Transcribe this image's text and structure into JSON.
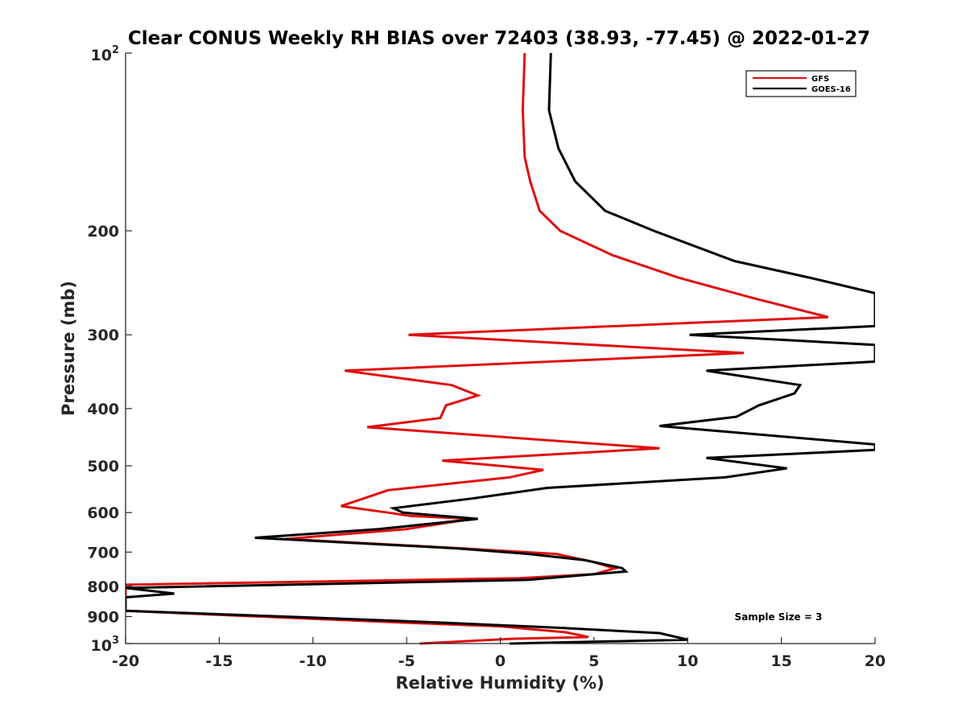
{
  "chart_data": {
    "type": "line",
    "title": "Clear CONUS Weekly RH BIAS over 72403 (38.93, -77.45) @ 2022-01-27",
    "xlabel": "Relative Humidity (%)",
    "ylabel": "Pressure (mb)",
    "xlim": [
      -20,
      20
    ],
    "ylim": [
      100,
      1000
    ],
    "y_scale": "log",
    "y_reversed": true,
    "x_ticks": [
      "-20",
      "-15",
      "-10",
      "-5",
      "0",
      "5",
      "10",
      "15",
      "20"
    ],
    "x_tick_values": [
      -20,
      -15,
      -10,
      -5,
      0,
      5,
      10,
      15,
      20
    ],
    "y_ticks": [
      {
        "value": 100,
        "base": "10",
        "exp": "2"
      },
      {
        "value": 200,
        "label": "200"
      },
      {
        "value": 300,
        "label": "300"
      },
      {
        "value": 400,
        "label": "400"
      },
      {
        "value": 500,
        "label": "500"
      },
      {
        "value": 600,
        "label": "600"
      },
      {
        "value": 700,
        "label": "700"
      },
      {
        "value": 800,
        "label": "800"
      },
      {
        "value": 900,
        "label": "900"
      },
      {
        "value": 1000,
        "base": "10",
        "exp": "3"
      }
    ],
    "grid": false,
    "legend_position": "top-right",
    "series": [
      {
        "name": "GFS",
        "color": "#e01010",
        "points": [
          [
            1.3,
            100
          ],
          [
            1.2,
            125
          ],
          [
            1.3,
            150
          ],
          [
            1.6,
            165
          ],
          [
            2.1,
            185
          ],
          [
            3.2,
            200
          ],
          [
            6.0,
            220
          ],
          [
            9.5,
            240
          ],
          [
            13.5,
            260
          ],
          [
            17.5,
            280
          ],
          [
            -4.9,
            300
          ],
          [
            13.0,
            322
          ],
          [
            -8.3,
            345
          ],
          [
            -2.6,
            365
          ],
          [
            -1.2,
            380
          ],
          [
            -2.9,
            395
          ],
          [
            -3.2,
            415
          ],
          [
            -7.1,
            430
          ],
          [
            8.5,
            467
          ],
          [
            -3.1,
            490
          ],
          [
            2.3,
            508
          ],
          [
            0.5,
            523
          ],
          [
            -6.0,
            550
          ],
          [
            -7.3,
            568
          ],
          [
            -8.5,
            585
          ],
          [
            -6.0,
            600
          ],
          [
            -4.8,
            608
          ],
          [
            -1.5,
            615
          ],
          [
            -5.0,
            640
          ],
          [
            -11.5,
            665
          ],
          [
            -2.0,
            690
          ],
          [
            3.0,
            705
          ],
          [
            5.0,
            728
          ],
          [
            6.1,
            746
          ],
          [
            5.0,
            763
          ],
          [
            1.0,
            775
          ],
          [
            -20.0,
            795
          ],
          [
            -20.0,
            880
          ],
          [
            -11.0,
            905
          ],
          [
            -5.0,
            922
          ],
          [
            0.0,
            935
          ],
          [
            3.5,
            957
          ],
          [
            4.7,
            975
          ],
          [
            0.5,
            982
          ],
          [
            -4.3,
            1000
          ]
        ]
      },
      {
        "name": "GOES-16",
        "color": "#000000",
        "points": [
          [
            2.7,
            100
          ],
          [
            2.6,
            125
          ],
          [
            3.1,
            145
          ],
          [
            4.0,
            165
          ],
          [
            5.6,
            185
          ],
          [
            8.2,
            200
          ],
          [
            12.5,
            225
          ],
          [
            16.5,
            240
          ],
          [
            20.0,
            255
          ],
          [
            20.0,
            290
          ],
          [
            10.1,
            300
          ],
          [
            20.0,
            312
          ],
          [
            20.0,
            333
          ],
          [
            11.0,
            345
          ],
          [
            16.0,
            365
          ],
          [
            15.7,
            377
          ],
          [
            13.8,
            395
          ],
          [
            12.6,
            413
          ],
          [
            8.5,
            428
          ],
          [
            20.0,
            460
          ],
          [
            20.0,
            470
          ],
          [
            11.0,
            485
          ],
          [
            15.3,
            505
          ],
          [
            12.0,
            523
          ],
          [
            2.5,
            545
          ],
          [
            -1.5,
            568
          ],
          [
            -5.7,
            590
          ],
          [
            -5.2,
            600
          ],
          [
            -1.2,
            615
          ],
          [
            -6.5,
            640
          ],
          [
            -13.1,
            662
          ],
          [
            -2.3,
            690
          ],
          [
            1.5,
            705
          ],
          [
            4.5,
            722
          ],
          [
            6.5,
            745
          ],
          [
            6.7,
            755
          ],
          [
            1.5,
            780
          ],
          [
            -20.0,
            805
          ],
          [
            -17.4,
            823
          ],
          [
            -20.0,
            835
          ],
          [
            -20.0,
            880
          ],
          [
            -9.5,
            905
          ],
          [
            -3.0,
            922
          ],
          [
            3.0,
            940
          ],
          [
            8.5,
            960
          ],
          [
            10.0,
            985
          ],
          [
            0.5,
            1000
          ]
        ]
      }
    ],
    "annotations": [
      "Sample Size = 3"
    ]
  }
}
